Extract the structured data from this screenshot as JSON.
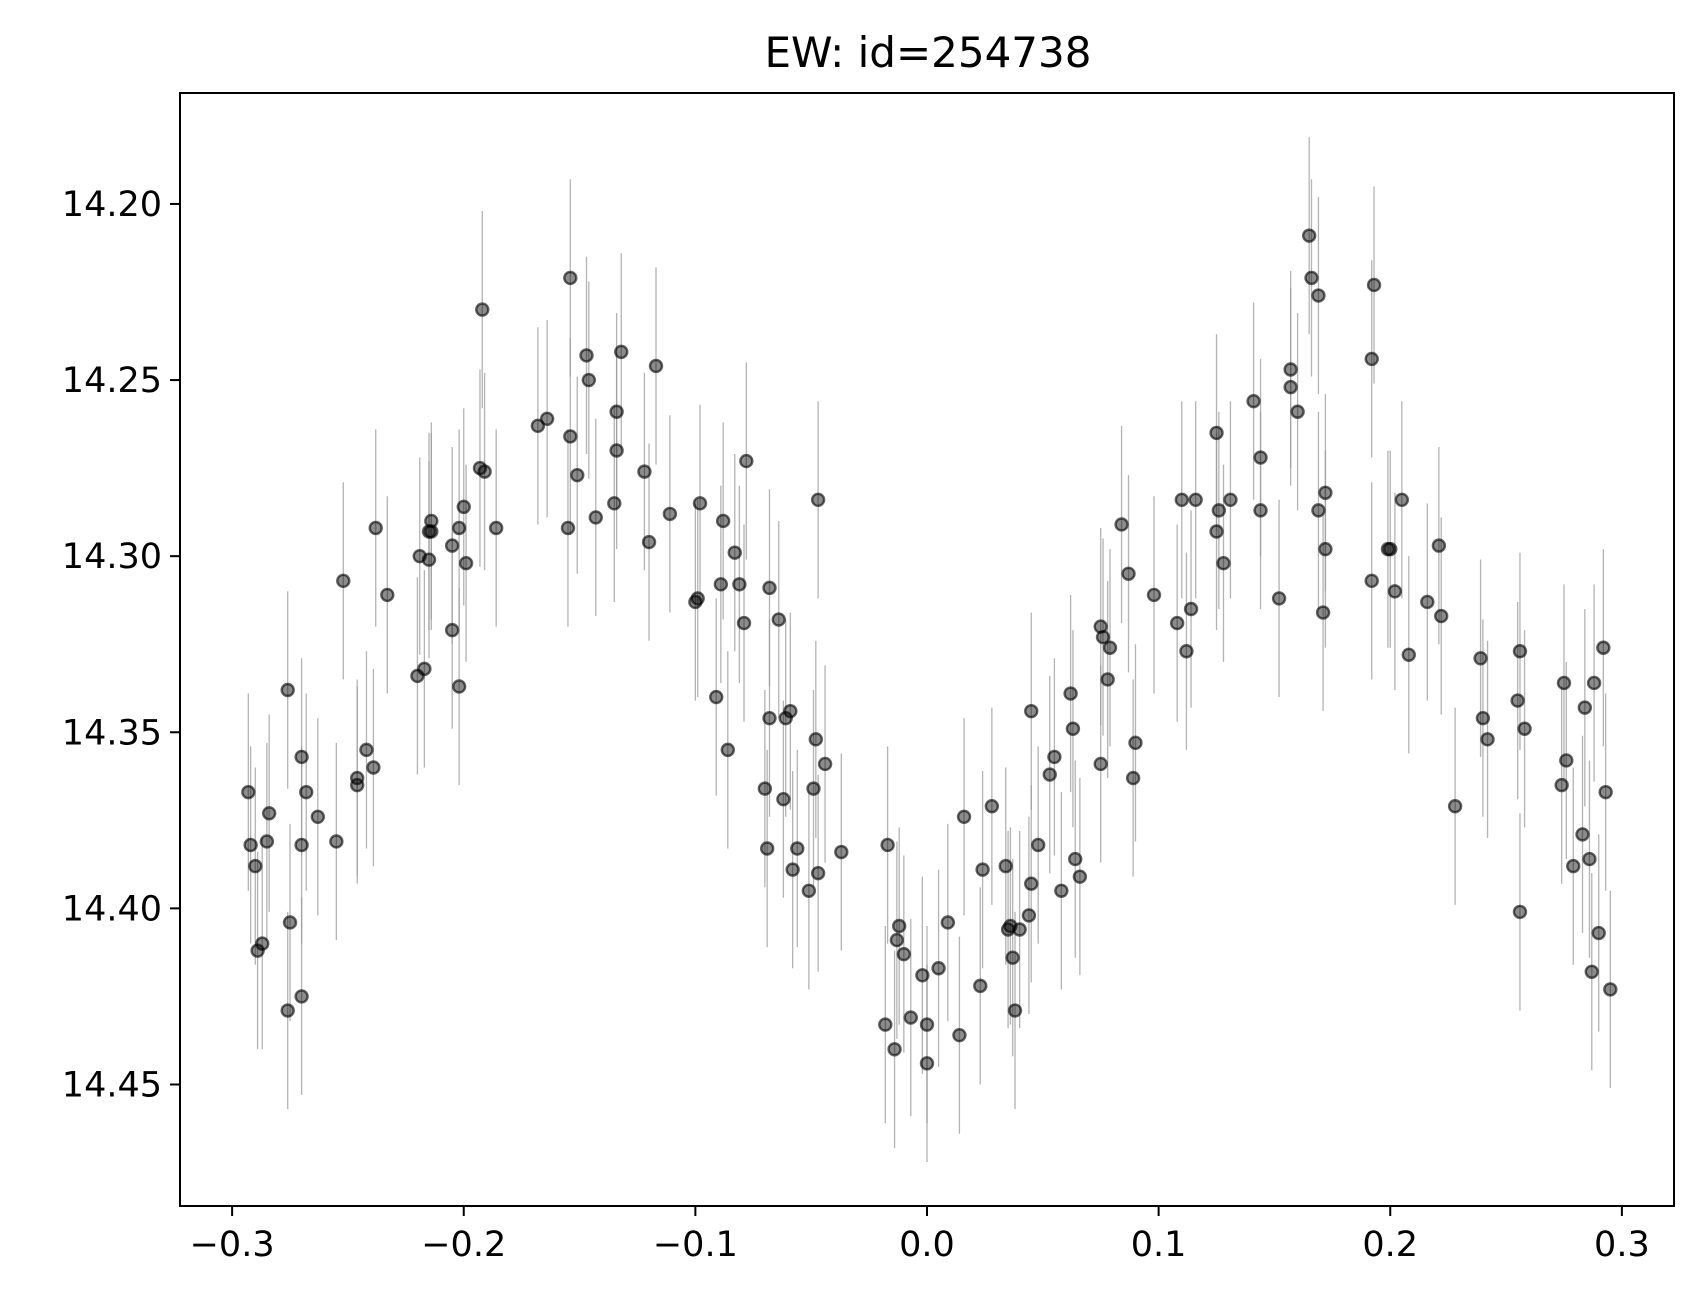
{
  "chart_data": {
    "type": "scatter",
    "title": "EW: id=254738",
    "xlabel": "",
    "ylabel": "",
    "xlim": [
      -0.3225,
      0.3225
    ],
    "ylim": [
      14.4845,
      14.1685
    ],
    "y_inverted": true,
    "x_ticks": [
      -0.3,
      -0.2,
      -0.1,
      0.0,
      0.1,
      0.2,
      0.3
    ],
    "x_tick_labels": [
      "−0.3",
      "−0.2",
      "−0.1",
      "0.0",
      "0.1",
      "0.2",
      "0.3"
    ],
    "y_ticks": [
      14.2,
      14.25,
      14.3,
      14.35,
      14.4,
      14.45
    ],
    "y_tick_labels": [
      "14.20",
      "14.25",
      "14.30",
      "14.35",
      "14.40",
      "14.45"
    ],
    "grid": false,
    "marker_color": "#000000",
    "errorbar_color": "#9a9a9a",
    "points": [
      [
        -0.293,
        14.367,
        0.028
      ],
      [
        -0.292,
        14.382,
        0.028
      ],
      [
        -0.29,
        14.388,
        0.028
      ],
      [
        -0.289,
        14.412,
        0.028
      ],
      [
        -0.287,
        14.41,
        0.03
      ],
      [
        -0.285,
        14.381,
        0.028
      ],
      [
        -0.284,
        14.373,
        0.028
      ],
      [
        -0.276,
        14.338,
        0.028
      ],
      [
        -0.276,
        14.429,
        0.028
      ],
      [
        -0.275,
        14.404,
        0.028
      ],
      [
        -0.27,
        14.425,
        0.028
      ],
      [
        -0.27,
        14.382,
        0.028
      ],
      [
        -0.27,
        14.357,
        0.028
      ],
      [
        -0.268,
        14.367,
        0.028
      ],
      [
        -0.263,
        14.374,
        0.028
      ],
      [
        -0.255,
        14.381,
        0.028
      ],
      [
        -0.252,
        14.307,
        0.028
      ],
      [
        -0.246,
        14.365,
        0.028
      ],
      [
        -0.246,
        14.363,
        0.028
      ],
      [
        -0.242,
        14.355,
        0.028
      ],
      [
        -0.239,
        14.36,
        0.028
      ],
      [
        -0.238,
        14.292,
        0.028
      ],
      [
        -0.233,
        14.311,
        0.028
      ],
      [
        -0.22,
        14.334,
        0.028
      ],
      [
        -0.219,
        14.3,
        0.028
      ],
      [
        -0.217,
        14.332,
        0.028
      ],
      [
        -0.215,
        14.301,
        0.028
      ],
      [
        -0.215,
        14.293,
        0.028
      ],
      [
        -0.214,
        14.29,
        0.028
      ],
      [
        -0.214,
        14.293,
        0.028
      ],
      [
        -0.205,
        14.321,
        0.028
      ],
      [
        -0.205,
        14.297,
        0.028
      ],
      [
        -0.202,
        14.292,
        0.028
      ],
      [
        -0.202,
        14.337,
        0.028
      ],
      [
        -0.2,
        14.286,
        0.028
      ],
      [
        -0.199,
        14.302,
        0.028
      ],
      [
        -0.193,
        14.275,
        0.028
      ],
      [
        -0.192,
        14.23,
        0.028
      ],
      [
        -0.191,
        14.276,
        0.028
      ],
      [
        -0.186,
        14.292,
        0.028
      ],
      [
        -0.168,
        14.263,
        0.028
      ],
      [
        -0.164,
        14.261,
        0.028
      ],
      [
        -0.155,
        14.292,
        0.028
      ],
      [
        -0.154,
        14.221,
        0.028
      ],
      [
        -0.154,
        14.266,
        0.028
      ],
      [
        -0.151,
        14.277,
        0.028
      ],
      [
        -0.147,
        14.243,
        0.028
      ],
      [
        -0.146,
        14.25,
        0.028
      ],
      [
        -0.143,
        14.289,
        0.028
      ],
      [
        -0.135,
        14.285,
        0.028
      ],
      [
        -0.134,
        14.27,
        0.028
      ],
      [
        -0.134,
        14.259,
        0.028
      ],
      [
        -0.132,
        14.242,
        0.028
      ],
      [
        -0.122,
        14.276,
        0.028
      ],
      [
        -0.12,
        14.296,
        0.028
      ],
      [
        -0.117,
        14.246,
        0.028
      ],
      [
        -0.111,
        14.288,
        0.028
      ],
      [
        -0.1,
        14.313,
        0.028
      ],
      [
        -0.099,
        14.312,
        0.028
      ],
      [
        -0.098,
        14.285,
        0.028
      ],
      [
        -0.091,
        14.34,
        0.028
      ],
      [
        -0.089,
        14.308,
        0.028
      ],
      [
        -0.088,
        14.29,
        0.028
      ],
      [
        -0.086,
        14.355,
        0.028
      ],
      [
        -0.083,
        14.299,
        0.028
      ],
      [
        -0.081,
        14.308,
        0.028
      ],
      [
        -0.079,
        14.319,
        0.028
      ],
      [
        -0.078,
        14.273,
        0.028
      ],
      [
        -0.07,
        14.366,
        0.028
      ],
      [
        -0.069,
        14.383,
        0.028
      ],
      [
        -0.068,
        14.309,
        0.028
      ],
      [
        -0.068,
        14.346,
        0.028
      ],
      [
        -0.064,
        14.318,
        0.028
      ],
      [
        -0.062,
        14.369,
        0.028
      ],
      [
        -0.061,
        14.346,
        0.028
      ],
      [
        -0.059,
        14.344,
        0.028
      ],
      [
        -0.058,
        14.389,
        0.028
      ],
      [
        -0.056,
        14.383,
        0.028
      ],
      [
        -0.051,
        14.395,
        0.028
      ],
      [
        -0.049,
        14.366,
        0.028
      ],
      [
        -0.048,
        14.352,
        0.028
      ],
      [
        -0.047,
        14.284,
        0.028
      ],
      [
        -0.047,
        14.39,
        0.028
      ],
      [
        -0.044,
        14.359,
        0.028
      ],
      [
        -0.037,
        14.384,
        0.028
      ],
      [
        -0.018,
        14.433,
        0.028
      ],
      [
        -0.017,
        14.382,
        0.028
      ],
      [
        -0.014,
        14.44,
        0.028
      ],
      [
        -0.013,
        14.409,
        0.028
      ],
      [
        -0.012,
        14.405,
        0.028
      ],
      [
        -0.01,
        14.413,
        0.028
      ],
      [
        -0.007,
        14.431,
        0.028
      ],
      [
        -0.002,
        14.419,
        0.028
      ],
      [
        0.0,
        14.433,
        0.028
      ],
      [
        0.0,
        14.444,
        0.028
      ],
      [
        0.005,
        14.417,
        0.028
      ],
      [
        0.009,
        14.404,
        0.028
      ],
      [
        0.014,
        14.436,
        0.028
      ],
      [
        0.016,
        14.374,
        0.028
      ],
      [
        0.023,
        14.422,
        0.028
      ],
      [
        0.024,
        14.389,
        0.028
      ],
      [
        0.028,
        14.371,
        0.028
      ],
      [
        0.034,
        14.388,
        0.028
      ],
      [
        0.035,
        14.406,
        0.028
      ],
      [
        0.036,
        14.405,
        0.028
      ],
      [
        0.037,
        14.414,
        0.028
      ],
      [
        0.038,
        14.429,
        0.028
      ],
      [
        0.04,
        14.406,
        0.028
      ],
      [
        0.044,
        14.402,
        0.028
      ],
      [
        0.045,
        14.344,
        0.028
      ],
      [
        0.045,
        14.393,
        0.028
      ],
      [
        0.048,
        14.382,
        0.028
      ],
      [
        0.053,
        14.362,
        0.028
      ],
      [
        0.055,
        14.357,
        0.028
      ],
      [
        0.058,
        14.395,
        0.028
      ],
      [
        0.062,
        14.339,
        0.028
      ],
      [
        0.063,
        14.349,
        0.028
      ],
      [
        0.064,
        14.386,
        0.028
      ],
      [
        0.066,
        14.391,
        0.028
      ],
      [
        0.075,
        14.32,
        0.028
      ],
      [
        0.075,
        14.359,
        0.028
      ],
      [
        0.076,
        14.323,
        0.028
      ],
      [
        0.078,
        14.335,
        0.028
      ],
      [
        0.079,
        14.326,
        0.028
      ],
      [
        0.084,
        14.291,
        0.028
      ],
      [
        0.087,
        14.305,
        0.028
      ],
      [
        0.089,
        14.363,
        0.028
      ],
      [
        0.09,
        14.353,
        0.028
      ],
      [
        0.098,
        14.311,
        0.028
      ],
      [
        0.108,
        14.319,
        0.028
      ],
      [
        0.11,
        14.284,
        0.028
      ],
      [
        0.112,
        14.327,
        0.028
      ],
      [
        0.114,
        14.315,
        0.028
      ],
      [
        0.116,
        14.284,
        0.028
      ],
      [
        0.125,
        14.265,
        0.028
      ],
      [
        0.125,
        14.293,
        0.028
      ],
      [
        0.126,
        14.287,
        0.028
      ],
      [
        0.128,
        14.302,
        0.028
      ],
      [
        0.131,
        14.284,
        0.028
      ],
      [
        0.141,
        14.256,
        0.028
      ],
      [
        0.144,
        14.287,
        0.028
      ],
      [
        0.144,
        14.272,
        0.028
      ],
      [
        0.152,
        14.312,
        0.028
      ],
      [
        0.157,
        14.247,
        0.028
      ],
      [
        0.157,
        14.252,
        0.028
      ],
      [
        0.16,
        14.259,
        0.028
      ],
      [
        0.165,
        14.209,
        0.028
      ],
      [
        0.166,
        14.221,
        0.028
      ],
      [
        0.169,
        14.226,
        0.028
      ],
      [
        0.169,
        14.287,
        0.028
      ],
      [
        0.171,
        14.316,
        0.028
      ],
      [
        0.172,
        14.298,
        0.028
      ],
      [
        0.172,
        14.282,
        0.028
      ],
      [
        0.192,
        14.307,
        0.028
      ],
      [
        0.192,
        14.244,
        0.028
      ],
      [
        0.193,
        14.223,
        0.028
      ],
      [
        0.199,
        14.298,
        0.028
      ],
      [
        0.2,
        14.298,
        0.028
      ],
      [
        0.202,
        14.31,
        0.028
      ],
      [
        0.205,
        14.284,
        0.028
      ],
      [
        0.208,
        14.328,
        0.028
      ],
      [
        0.216,
        14.313,
        0.028
      ],
      [
        0.221,
        14.297,
        0.028
      ],
      [
        0.222,
        14.317,
        0.028
      ],
      [
        0.228,
        14.371,
        0.028
      ],
      [
        0.239,
        14.329,
        0.028
      ],
      [
        0.24,
        14.346,
        0.028
      ],
      [
        0.242,
        14.352,
        0.028
      ],
      [
        0.255,
        14.341,
        0.028
      ],
      [
        0.256,
        14.401,
        0.028
      ],
      [
        0.256,
        14.327,
        0.028
      ],
      [
        0.258,
        14.349,
        0.028
      ],
      [
        0.274,
        14.365,
        0.028
      ],
      [
        0.275,
        14.336,
        0.028
      ],
      [
        0.276,
        14.358,
        0.028
      ],
      [
        0.279,
        14.388,
        0.028
      ],
      [
        0.283,
        14.379,
        0.028
      ],
      [
        0.284,
        14.343,
        0.028
      ],
      [
        0.286,
        14.386,
        0.028
      ],
      [
        0.287,
        14.418,
        0.028
      ],
      [
        0.288,
        14.336,
        0.028
      ],
      [
        0.29,
        14.407,
        0.028
      ],
      [
        0.292,
        14.326,
        0.028
      ],
      [
        0.293,
        14.367,
        0.028
      ],
      [
        0.295,
        14.423,
        0.028
      ]
    ]
  }
}
